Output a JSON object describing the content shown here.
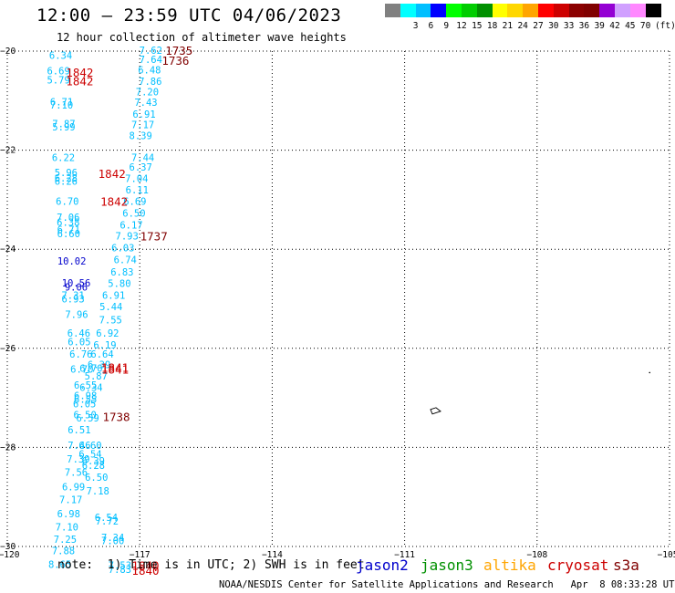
{
  "title": "12:00 — 23:59 UTC 04/06/2023",
  "subtitle": "12 hour collection of altimeter wave heights",
  "color_scale": {
    "unit_label": "(ft)",
    "bins": [
      {
        "label": "",
        "color": "#808080"
      },
      {
        "label": "3",
        "color": "#00ffff"
      },
      {
        "label": "6",
        "color": "#00bfff"
      },
      {
        "label": "9",
        "color": "#0000ff"
      },
      {
        "label": "12",
        "color": "#00ff00"
      },
      {
        "label": "15",
        "color": "#00cd00"
      },
      {
        "label": "18",
        "color": "#009000"
      },
      {
        "label": "21",
        "color": "#ffff00"
      },
      {
        "label": "24",
        "color": "#ffd700"
      },
      {
        "label": "27",
        "color": "#ffa500"
      },
      {
        "label": "30",
        "color": "#ff0000"
      },
      {
        "label": "33",
        "color": "#cd0000"
      },
      {
        "label": "36",
        "color": "#8b0000"
      },
      {
        "label": "39",
        "color": "#800000"
      },
      {
        "label": "42",
        "color": "#9400d3"
      },
      {
        "label": "45",
        "color": "#d0a0ff"
      },
      {
        "label": "70",
        "color": "#ff88ff"
      },
      {
        "label": "",
        "color": "#000000"
      }
    ]
  },
  "note": "note:  1) Time is in UTC; 2) SWH is in feet",
  "satellites": [
    {
      "name": "jason2",
      "color": "#0000cc"
    },
    {
      "name": "jason3",
      "color": "#009000"
    },
    {
      "name": "altika",
      "color": "#ffa500"
    },
    {
      "name": "cryosat",
      "color": "#cc0000"
    },
    {
      "name": "s3a",
      "color": "#800000"
    }
  ],
  "credit": "NOAA/NESDIS Center for Satellite Applications and Research   Apr  8 08:33:28 UTC 2023",
  "chart_data": {
    "type": "scatter",
    "title": "12:00 — 23:59 UTC 04/06/2023",
    "xlim": [
      -120,
      -105
    ],
    "ylim": [
      -30,
      -20
    ],
    "x_ticks": [
      -120,
      -117,
      -114,
      -111,
      -108,
      -105
    ],
    "y_ticks": [
      -20,
      -22,
      -24,
      -26,
      -28,
      -30
    ],
    "x_tick_labels": [
      "−120",
      "−117",
      "−114",
      "−111",
      "−108",
      "−105"
    ],
    "y_tick_labels": [
      "−20",
      "−22",
      "−24",
      "−26",
      "−28",
      "−30"
    ],
    "grid": true,
    "swh_points": [
      {
        "x": -118.79,
        "y": -20.08,
        "v": "6.34",
        "c": "#00bfff"
      },
      {
        "x": -116.75,
        "y": -19.98,
        "v": "7.62",
        "c": "#00bfff"
      },
      {
        "x": -116.75,
        "y": -20.17,
        "v": "7.64",
        "c": "#00bfff"
      },
      {
        "x": -116.78,
        "y": -20.38,
        "v": "6.48",
        "c": "#00bfff"
      },
      {
        "x": -118.84,
        "y": -20.4,
        "v": "6.69",
        "c": "#00bfff"
      },
      {
        "x": -118.84,
        "y": -20.58,
        "v": "5.79",
        "c": "#00bfff"
      },
      {
        "x": -116.76,
        "y": -20.61,
        "v": "7.86",
        "c": "#00bfff"
      },
      {
        "x": -116.83,
        "y": -20.82,
        "v": "7.20",
        "c": "#00bfff"
      },
      {
        "x": -116.86,
        "y": -21.03,
        "v": "7.43",
        "c": "#00bfff"
      },
      {
        "x": -118.77,
        "y": -21.02,
        "v": "6.71",
        "c": "#00bfff"
      },
      {
        "x": -118.77,
        "y": -21.09,
        "v": "7.10",
        "c": "#00bfff"
      },
      {
        "x": -116.9,
        "y": -21.27,
        "v": "6.91",
        "c": "#00bfff"
      },
      {
        "x": -118.72,
        "y": -21.46,
        "v": "7.87",
        "c": "#00bfff"
      },
      {
        "x": -118.72,
        "y": -21.53,
        "v": "5.99",
        "c": "#00bfff"
      },
      {
        "x": -116.93,
        "y": -21.48,
        "v": "7.17",
        "c": "#00bfff"
      },
      {
        "x": -116.98,
        "y": -21.7,
        "v": "8.39",
        "c": "#00bfff"
      },
      {
        "x": -116.93,
        "y": -22.15,
        "v": "7.44",
        "c": "#00bfff"
      },
      {
        "x": -118.73,
        "y": -22.15,
        "v": "6.22",
        "c": "#00bfff"
      },
      {
        "x": -116.98,
        "y": -22.34,
        "v": "6.37",
        "c": "#00bfff"
      },
      {
        "x": -118.67,
        "y": -22.45,
        "v": "5.96",
        "c": "#00bfff"
      },
      {
        "x": -118.67,
        "y": -22.56,
        "v": "6.28",
        "c": "#00bfff"
      },
      {
        "x": -118.67,
        "y": -22.62,
        "v": "6.26",
        "c": "#00bfff"
      },
      {
        "x": -117.07,
        "y": -22.57,
        "v": "7.04",
        "c": "#00bfff"
      },
      {
        "x": -117.06,
        "y": -22.8,
        "v": "6.11",
        "c": "#00bfff"
      },
      {
        "x": -118.64,
        "y": -23.03,
        "v": "6.70",
        "c": "#00bfff"
      },
      {
        "x": -117.11,
        "y": -23.03,
        "v": "6.69",
        "c": "#00bfff"
      },
      {
        "x": -117.13,
        "y": -23.27,
        "v": "6.50",
        "c": "#00bfff"
      },
      {
        "x": -118.62,
        "y": -23.35,
        "v": "7.06",
        "c": "#00bfff"
      },
      {
        "x": -118.62,
        "y": -23.45,
        "v": "6.38",
        "c": "#00bfff"
      },
      {
        "x": -117.19,
        "y": -23.51,
        "v": "6.17",
        "c": "#00bfff"
      },
      {
        "x": -118.61,
        "y": -23.6,
        "v": "6.71",
        "c": "#00bfff"
      },
      {
        "x": -118.61,
        "y": -23.68,
        "v": "6.60",
        "c": "#00bfff"
      },
      {
        "x": -117.29,
        "y": -23.73,
        "v": "7.93",
        "c": "#00bfff"
      },
      {
        "x": -117.38,
        "y": -23.97,
        "v": "6.03",
        "c": "#00bfff"
      },
      {
        "x": -118.54,
        "y": -24.24,
        "v": "10.02",
        "c": "#0000cc"
      },
      {
        "x": -117.33,
        "y": -24.21,
        "v": "6.74",
        "c": "#00bfff"
      },
      {
        "x": -117.4,
        "y": -24.46,
        "v": "6.83",
        "c": "#00bfff"
      },
      {
        "x": -118.44,
        "y": -24.68,
        "v": "10.56",
        "c": "#0000cc"
      },
      {
        "x": -118.44,
        "y": -24.76,
        "v": "9.06",
        "c": "#0000cc"
      },
      {
        "x": -117.46,
        "y": -24.69,
        "v": "5.80",
        "c": "#00bfff"
      },
      {
        "x": -118.51,
        "y": -24.93,
        "v": "7.31",
        "c": "#00bfff"
      },
      {
        "x": -118.51,
        "y": -25.0,
        "v": "6.93",
        "c": "#00bfff"
      },
      {
        "x": -117.59,
        "y": -24.93,
        "v": "6.91",
        "c": "#00bfff"
      },
      {
        "x": -117.65,
        "y": -25.16,
        "v": "5.44",
        "c": "#00bfff"
      },
      {
        "x": -118.43,
        "y": -25.31,
        "v": "7.96",
        "c": "#00bfff"
      },
      {
        "x": -117.66,
        "y": -25.42,
        "v": "7.55",
        "c": "#00bfff"
      },
      {
        "x": -118.38,
        "y": -25.69,
        "v": "6.46",
        "c": "#00bfff"
      },
      {
        "x": -117.73,
        "y": -25.69,
        "v": "6.92",
        "c": "#00bfff"
      },
      {
        "x": -118.37,
        "y": -25.87,
        "v": "6.05",
        "c": "#00bfff"
      },
      {
        "x": -117.79,
        "y": -25.93,
        "v": "6.19",
        "c": "#00bfff"
      },
      {
        "x": -118.33,
        "y": -26.11,
        "v": "6.76",
        "c": "#00bfff"
      },
      {
        "x": -117.85,
        "y": -26.11,
        "v": "6.64",
        "c": "#00bfff"
      },
      {
        "x": -117.92,
        "y": -26.33,
        "v": "6.39",
        "c": "#00bfff"
      },
      {
        "x": -118.31,
        "y": -26.42,
        "v": "6.70",
        "c": "#00bfff"
      },
      {
        "x": -118.1,
        "y": -26.4,
        "v": "6.70",
        "c": "#00bfff"
      },
      {
        "x": -117.99,
        "y": -26.56,
        "v": "5.87",
        "c": "#00bfff"
      },
      {
        "x": -118.23,
        "y": -26.74,
        "v": "6.55",
        "c": "#00bfff"
      },
      {
        "x": -118.1,
        "y": -26.79,
        "v": "6.34",
        "c": "#00bfff"
      },
      {
        "x": -118.23,
        "y": -26.95,
        "v": "6.98",
        "c": "#00bfff"
      },
      {
        "x": -118.23,
        "y": -27.03,
        "v": "6.55",
        "c": "#00bfff"
      },
      {
        "x": -118.25,
        "y": -27.12,
        "v": "6.05",
        "c": "#00bfff"
      },
      {
        "x": -118.24,
        "y": -27.34,
        "v": "6.50",
        "c": "#00bfff"
      },
      {
        "x": -118.18,
        "y": -27.4,
        "v": "6.59",
        "c": "#00bfff"
      },
      {
        "x": -118.37,
        "y": -27.64,
        "v": "6.51",
        "c": "#00bfff"
      },
      {
        "x": -118.37,
        "y": -27.96,
        "v": "7.46",
        "c": "#00bfff"
      },
      {
        "x": -118.12,
        "y": -27.96,
        "v": "6.60",
        "c": "#00bfff"
      },
      {
        "x": -118.12,
        "y": -28.13,
        "v": "6.54",
        "c": "#00bfff"
      },
      {
        "x": -118.39,
        "y": -28.23,
        "v": "7.39",
        "c": "#00bfff"
      },
      {
        "x": -118.05,
        "y": -28.27,
        "v": "6.39",
        "c": "#00bfff"
      },
      {
        "x": -118.05,
        "y": -28.36,
        "v": "6.28",
        "c": "#00bfff"
      },
      {
        "x": -118.44,
        "y": -28.5,
        "v": "7.56",
        "c": "#00bfff"
      },
      {
        "x": -117.98,
        "y": -28.6,
        "v": "6.50",
        "c": "#00bfff"
      },
      {
        "x": -118.5,
        "y": -28.79,
        "v": "6.99",
        "c": "#00bfff"
      },
      {
        "x": -117.95,
        "y": -28.88,
        "v": "7.18",
        "c": "#00bfff"
      },
      {
        "x": -118.56,
        "y": -29.05,
        "v": "7.17",
        "c": "#00bfff"
      },
      {
        "x": -118.61,
        "y": -29.34,
        "v": "6.98",
        "c": "#00bfff"
      },
      {
        "x": -117.76,
        "y": -29.41,
        "v": "6.54",
        "c": "#00bfff"
      },
      {
        "x": -117.74,
        "y": -29.48,
        "v": "7.72",
        "c": "#00bfff"
      },
      {
        "x": -118.65,
        "y": -29.6,
        "v": "7.10",
        "c": "#00bfff"
      },
      {
        "x": -118.69,
        "y": -29.85,
        "v": "7.25",
        "c": "#00bfff"
      },
      {
        "x": -117.61,
        "y": -29.82,
        "v": "7.34",
        "c": "#00bfff"
      },
      {
        "x": -117.61,
        "y": -29.88,
        "v": "7.00",
        "c": "#00bfff"
      },
      {
        "x": -118.73,
        "y": -30.08,
        "v": "7.88",
        "c": "#00bfff"
      },
      {
        "x": -118.81,
        "y": -30.36,
        "v": "8.65",
        "c": "#00bfff"
      },
      {
        "x": -117.45,
        "y": -30.38,
        "v": "7.53",
        "c": "#00bfff"
      },
      {
        "x": -117.45,
        "y": -30.46,
        "v": "7.83",
        "c": "#00bfff"
      }
    ],
    "time_labels": [
      {
        "x": -116.11,
        "y": -19.98,
        "v": "1735",
        "c": "#800000"
      },
      {
        "x": -116.19,
        "y": -20.18,
        "v": "1736",
        "c": "#800000"
      },
      {
        "x": -118.36,
        "y": -20.42,
        "v": "1842",
        "c": "#cc0000"
      },
      {
        "x": -118.36,
        "y": -20.6,
        "v": "1842",
        "c": "#cc0000"
      },
      {
        "x": -117.63,
        "y": -22.47,
        "v": "1842",
        "c": "#cc0000"
      },
      {
        "x": -117.58,
        "y": -23.03,
        "v": "1842",
        "c": "#cc0000"
      },
      {
        "x": -116.68,
        "y": -23.73,
        "v": "1737",
        "c": "#800000"
      },
      {
        "x": -117.56,
        "y": -26.38,
        "v": "1841",
        "c": "#cc0000"
      },
      {
        "x": -117.56,
        "y": -26.42,
        "v": "1841",
        "c": "#cc0000"
      },
      {
        "x": -117.53,
        "y": -27.38,
        "v": "1738",
        "c": "#800000"
      },
      {
        "x": -116.87,
        "y": -30.38,
        "v": "1840",
        "c": "#cc0000"
      },
      {
        "x": -116.87,
        "y": -30.48,
        "v": "1840",
        "c": "#cc0000"
      }
    ],
    "land_marks": [
      {
        "name": "island-outline",
        "x": -110.31,
        "y": -27.29
      },
      {
        "name": "islet-dot",
        "x": -105.45,
        "y": -26.49
      }
    ]
  }
}
